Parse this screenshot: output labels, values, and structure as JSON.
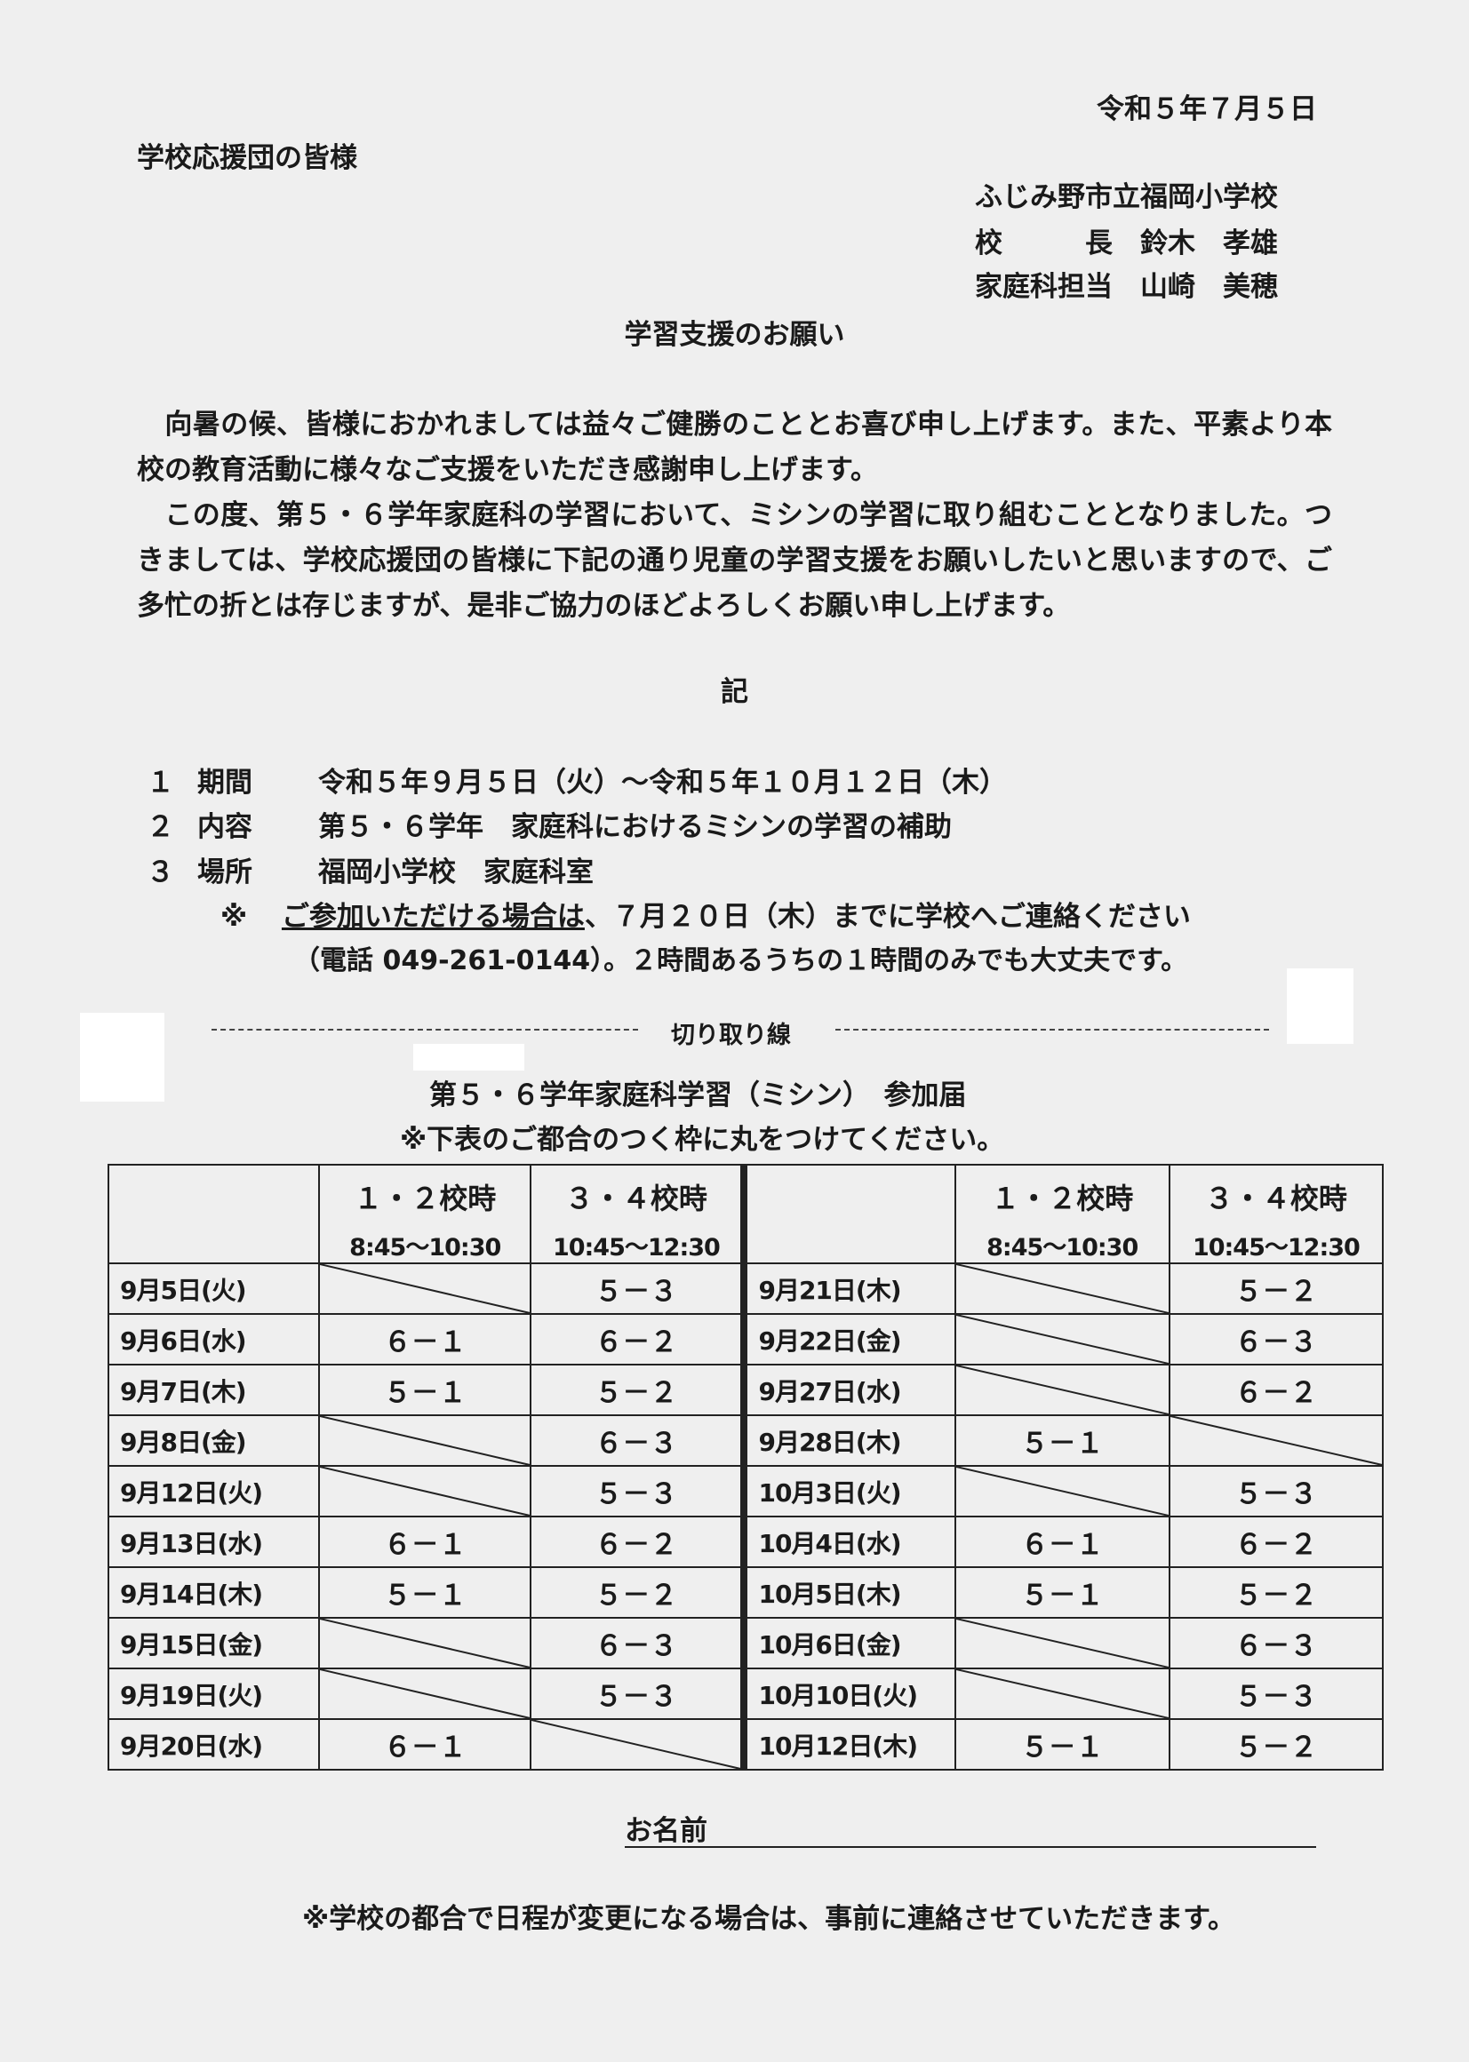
{
  "header": {
    "date": "令和５年７月５日",
    "recipient": "学校応援団の皆様",
    "sender": {
      "school": "ふじみ野市立福岡小学校",
      "principal": "校　　　長　鈴木　孝雄",
      "teacher": "家庭科担当　山崎　美穂"
    }
  },
  "title": "学習支援のお願い",
  "body": {
    "p1": "　向暑の候、皆様におかれましては益々ご健勝のこととお喜び申し上げます。また、平素より本校の教育活動に様々なご支援をいただき感謝申し上げます。",
    "p2": "　この度、第５・６学年家庭科の学習において、ミシンの学習に取り組むこととなりました。つきましては、学校応援団の皆様に下記の通り児童の学習支援をお願いしたいと思いますので、ご多忙の折とは存じますが、是非ご協力のほどよろしくお願い申し上げます。"
  },
  "ki": "記",
  "items": [
    {
      "num": "１",
      "label": "期間",
      "value": "令和５年９月５日（火）～令和５年１０月１２日（木）"
    },
    {
      "num": "２",
      "label": "内容",
      "value": "第５・６学年　家庭科におけるミシンの学習の補助"
    },
    {
      "num": "３",
      "label": "場所",
      "value": "福岡小学校　家庭科室"
    }
  ],
  "note": {
    "mark": "※",
    "underlined": "ご参加いただける場合は",
    "rest": "、７月２０日（木）までに学校へご連絡ください",
    "line2": "（電話 049-261-0144）。２時間あるうちの１時間のみでも大丈夫です。"
  },
  "cut_line": "切り取り線",
  "form": {
    "title": "第５・６学年家庭科学習（ミシン）　参加届",
    "instruction": "※下表のご都合のつく枠に丸をつけてください。",
    "headers": [
      {
        "period": "１・２校時",
        "time": "8:45～10:30"
      },
      {
        "period": "３・４校時",
        "time": "10:45～12:30"
      }
    ],
    "rows": [
      {
        "l_date": "9月5日(火)",
        "l_a": null,
        "l_b": "５－３",
        "r_date": "9月21日(木)",
        "r_a": null,
        "r_b": "５－２"
      },
      {
        "l_date": "9月6日(水)",
        "l_a": "６－１",
        "l_b": "６－２",
        "r_date": "9月22日(金)",
        "r_a": null,
        "r_b": "６－３"
      },
      {
        "l_date": "9月7日(木)",
        "l_a": "５－１",
        "l_b": "５－２",
        "r_date": "9月27日(水)",
        "r_a": null,
        "r_b": "６－２"
      },
      {
        "l_date": "9月8日(金)",
        "l_a": null,
        "l_b": "６－３",
        "r_date": "9月28日(木)",
        "r_a": "５－１",
        "r_b": null
      },
      {
        "l_date": "9月12日(火)",
        "l_a": null,
        "l_b": "５－３",
        "r_date": "10月3日(火)",
        "r_a": null,
        "r_b": "５－３"
      },
      {
        "l_date": "9月13日(水)",
        "l_a": "６－１",
        "l_b": "６－２",
        "r_date": "10月4日(水)",
        "r_a": "６－１",
        "r_b": "６－２"
      },
      {
        "l_date": "9月14日(木)",
        "l_a": "５－１",
        "l_b": "５－２",
        "r_date": "10月5日(木)",
        "r_a": "５－１",
        "r_b": "５－２"
      },
      {
        "l_date": "9月15日(金)",
        "l_a": null,
        "l_b": "６－３",
        "r_date": "10月6日(金)",
        "r_a": null,
        "r_b": "６－３"
      },
      {
        "l_date": "9月19日(火)",
        "l_a": null,
        "l_b": "５－３",
        "r_date": "10月10日(火)",
        "r_a": null,
        "r_b": "５－３"
      },
      {
        "l_date": "9月20日(水)",
        "l_a": "６－１",
        "l_b": null,
        "r_date": "10月12日(木)",
        "r_a": "５－１",
        "r_b": "５－２"
      }
    ],
    "name_label": "お名前"
  },
  "footer_note": "※学校の都合で日程が変更になる場合は、事前に連絡させていただきます。"
}
